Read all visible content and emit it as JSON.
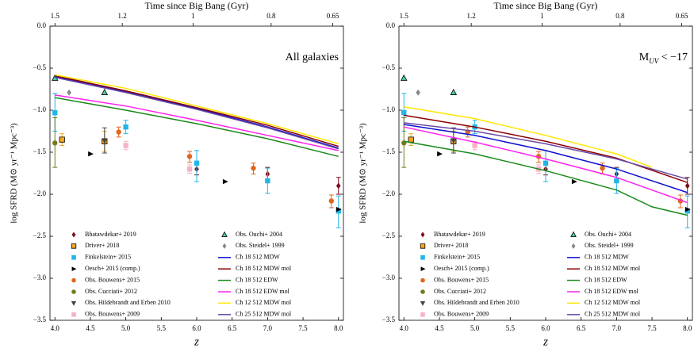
{
  "chart_data": [
    {
      "type": "combo",
      "xlabel": "z",
      "ylabel": "log SFRD (M⊙ yr⁻¹ Mpc⁻³)",
      "x2label": "Time since Big Bang (Gyr)",
      "annotation": [
        {
          "text": "All galaxies"
        }
      ],
      "xlim": [
        3.93,
        8.07
      ],
      "ylim": [
        -3.5,
        0
      ],
      "xticks": [
        {
          "value": 4,
          "label": "4.0"
        },
        4.5,
        {
          "value": 5,
          "label": "5.0"
        },
        5.5,
        {
          "value": 6,
          "label": "6.0"
        },
        6.5,
        {
          "value": 7,
          "label": "7.0"
        },
        7.5,
        {
          "value": 8,
          "label": "8.0"
        }
      ],
      "x2ticks": [
        {
          "value": 4.0,
          "label": "1.5"
        },
        {
          "value": 4.95,
          "label": "1.2"
        },
        {
          "value": 5.95,
          "label": "1"
        },
        {
          "value": 7.05,
          "label": "0.8"
        },
        {
          "value": 7.92,
          "label": "0.65"
        }
      ],
      "yticks": [
        {
          "value": -3.5,
          "label": "−3.5"
        },
        {
          "value": -3,
          "label": "−3.0"
        },
        {
          "value": -2.5,
          "label": "−2.5"
        },
        {
          "value": -2,
          "label": "−2.0"
        },
        {
          "value": -1.5,
          "label": "−1.5"
        },
        {
          "value": -1,
          "label": "−1.0"
        },
        {
          "value": -0.5,
          "label": "−0.5"
        },
        {
          "value": 0,
          "label": "0.0"
        }
      ],
      "legend": "lower left",
      "series": [
        {
          "name": "Bhatawdekar+ 2019",
          "type": "scatter",
          "marker": "diamond",
          "color": "#7b0f1a",
          "x": [
            6.0,
            7.0,
            8.0
          ],
          "values": [
            -1.7,
            -1.76,
            -1.9
          ],
          "yerr": [
            [
              0.07,
              0.07
            ],
            [
              0.08,
              0.08
            ],
            [
              0.1,
              0.1
            ]
          ]
        },
        {
          "name": "Driver+ 2018",
          "type": "scatter",
          "marker": "square",
          "color": "#f5a623",
          "edgecolor": "#000000",
          "x": [
            4.1,
            4.7
          ],
          "values": [
            -1.35,
            -1.37
          ],
          "yerr": [
            [
              0.07,
              0.07
            ],
            [
              0.12,
              0.12
            ]
          ]
        },
        {
          "name": "Finkelstein+ 2015",
          "type": "scatter",
          "marker": "square",
          "color": "#22b5e6",
          "x": [
            4.0,
            5.0,
            6.0,
            7.0,
            8.0
          ],
          "values": [
            -1.03,
            -1.2,
            -1.63,
            -1.84,
            -2.2
          ],
          "yerr": [
            [
              0.22,
              0.23
            ],
            [
              0.08,
              0.08
            ],
            [
              0.22,
              0.15
            ],
            [
              0.15,
              0.15
            ],
            [
              0.2,
              0.18
            ]
          ]
        },
        {
          "name": "Oesch+ 2015 (comp.)",
          "type": "scatter",
          "marker": "triangle-right",
          "color": "#000000",
          "x": [
            4.5,
            6.4,
            8.0
          ],
          "values": [
            -1.52,
            -1.85,
            -2.18
          ]
        },
        {
          "name": "Obs. Bouwens+ 2015",
          "type": "scatter",
          "marker": "circle",
          "color": "#e0661c",
          "x": [
            4.9,
            5.9,
            6.8,
            7.9
          ],
          "values": [
            -1.26,
            -1.55,
            -1.69,
            -2.08
          ],
          "yerr": [
            [
              0.06,
              0.06
            ],
            [
              0.07,
              0.06
            ],
            [
              0.07,
              0.06
            ],
            [
              0.08,
              0.07
            ]
          ]
        },
        {
          "name": "Obs. Cucciati+ 2012",
          "type": "scatter",
          "marker": "circle",
          "color": "#737a1a",
          "x": [
            4.0
          ],
          "values": [
            -1.39
          ],
          "yerr": [
            [
              0.29,
              0.3
            ]
          ]
        },
        {
          "name": "Obs. Hildebrandt and Erben 2010",
          "type": "scatter",
          "marker": "triangle-down",
          "color": "#444444",
          "x": [
            4.7
          ],
          "values": [
            -1.36
          ],
          "yerr": [
            [
              0.15,
              0.15
            ]
          ]
        },
        {
          "name": "Obs. Bouwens+ 2009",
          "type": "scatter",
          "marker": "square",
          "color": "#f5b3c3",
          "x": [
            5.0,
            5.9
          ],
          "values": [
            -1.42,
            -1.7
          ],
          "yerr": [
            [
              0.05,
              0.05
            ],
            [
              0.05,
              0.05
            ]
          ]
        },
        {
          "name": "Obs. Ouchi+ 2004",
          "type": "scatter",
          "marker": "triangle-up",
          "color": "#4cc9a8",
          "edgecolor": "#000000",
          "x": [
            4.0,
            4.7
          ],
          "values": [
            -0.62,
            -0.79
          ]
        },
        {
          "name": "Obs. Steidel+ 1999",
          "type": "scatter",
          "marker": "diamond",
          "color": "#888888",
          "x": [
            4.2
          ],
          "values": [
            -0.79
          ]
        },
        {
          "name": "Ch 18 512 MDW",
          "type": "line",
          "color": "#1010d0",
          "x": [
            4,
            5,
            6,
            7,
            8
          ],
          "values": [
            -0.6,
            -0.78,
            -0.98,
            -1.2,
            -1.45
          ]
        },
        {
          "name": "Ch 18 512 MDW mol",
          "type": "line",
          "color": "#8b0000",
          "x": [
            4,
            5,
            6,
            7,
            8
          ],
          "values": [
            -0.59,
            -0.77,
            -0.97,
            -1.18,
            -1.43
          ]
        },
        {
          "name": "Ch 18 512 EDW",
          "type": "line",
          "color": "#1a8a1a",
          "x": [
            4,
            5,
            6,
            7,
            8
          ],
          "values": [
            -0.85,
            -1.0,
            -1.16,
            -1.34,
            -1.55
          ]
        },
        {
          "name": "Ch 18 512 EDW mol",
          "type": "line",
          "color": "#ff22ee",
          "x": [
            4,
            5,
            6,
            7,
            8
          ],
          "values": [
            -0.82,
            -0.95,
            -1.12,
            -1.3,
            -1.48
          ]
        },
        {
          "name": "Ch 12 512 MDW mol",
          "type": "line",
          "color": "#ffe600",
          "x": [
            4,
            5,
            6,
            7,
            8
          ],
          "values": [
            -0.58,
            -0.74,
            -0.95,
            -1.16,
            -1.4
          ]
        },
        {
          "name": "Ch 25 512 MDW mol",
          "type": "line",
          "color": "#6a4aa8",
          "x": [
            4,
            5,
            6,
            7,
            8
          ],
          "values": [
            -0.61,
            -0.79,
            -0.99,
            -1.21,
            -1.46
          ]
        }
      ]
    },
    {
      "type": "combo",
      "xlabel": "z",
      "ylabel": "log SFRD (M⊙ yr⁻¹ Mpc⁻³)",
      "x2label": "Time since Big Bang (Gyr)",
      "annotation": [
        {
          "text": "M"
        },
        {
          "text": "UV",
          "sub": true
        },
        {
          "text": " < −17"
        }
      ],
      "xlim": [
        3.93,
        8.07
      ],
      "ylim": [
        -3.5,
        0
      ],
      "xticks": [
        {
          "value": 4,
          "label": "4.0"
        },
        4.5,
        {
          "value": 5,
          "label": "5.0"
        },
        5.5,
        {
          "value": 6,
          "label": "6.0"
        },
        6.5,
        {
          "value": 7,
          "label": "7.0"
        },
        7.5,
        {
          "value": 8,
          "label": "8.0"
        }
      ],
      "x2ticks": [
        {
          "value": 4.0,
          "label": "1.5"
        },
        {
          "value": 4.95,
          "label": "1.2"
        },
        {
          "value": 5.95,
          "label": "1"
        },
        {
          "value": 7.05,
          "label": "0.8"
        },
        {
          "value": 7.92,
          "label": "0.65"
        }
      ],
      "yticks": [
        {
          "value": -3.5,
          "label": "−3.5"
        },
        {
          "value": -3,
          "label": "−3.0"
        },
        {
          "value": -2.5,
          "label": "−2.5"
        },
        {
          "value": -2,
          "label": "−2.0"
        },
        {
          "value": -1.5,
          "label": "−1.5"
        },
        {
          "value": -1,
          "label": "−1.0"
        },
        {
          "value": -0.5,
          "label": "−0.5"
        },
        {
          "value": 0,
          "label": "0.0"
        }
      ],
      "legend": "lower left",
      "series": [
        {
          "name": "Bhatawdekar+ 2019",
          "type": "scatter",
          "marker": "diamond",
          "color": "#7b0f1a",
          "x": [
            6.0,
            7.0,
            8.0
          ],
          "values": [
            -1.7,
            -1.76,
            -1.9
          ],
          "yerr": [
            [
              0.07,
              0.07
            ],
            [
              0.08,
              0.08
            ],
            [
              0.1,
              0.1
            ]
          ]
        },
        {
          "name": "Driver+ 2018",
          "type": "scatter",
          "marker": "square",
          "color": "#f5a623",
          "edgecolor": "#000000",
          "x": [
            4.1,
            4.7
          ],
          "values": [
            -1.35,
            -1.37
          ],
          "yerr": [
            [
              0.07,
              0.07
            ],
            [
              0.12,
              0.12
            ]
          ]
        },
        {
          "name": "Finkelstein+ 2015",
          "type": "scatter",
          "marker": "square",
          "color": "#22b5e6",
          "x": [
            4.0,
            5.0,
            6.0,
            7.0,
            8.0
          ],
          "values": [
            -1.03,
            -1.2,
            -1.63,
            -1.84,
            -2.2
          ],
          "yerr": [
            [
              0.22,
              0.23
            ],
            [
              0.08,
              0.08
            ],
            [
              0.22,
              0.15
            ],
            [
              0.15,
              0.15
            ],
            [
              0.2,
              0.18
            ]
          ]
        },
        {
          "name": "Oesch+ 2015 (comp.)",
          "type": "scatter",
          "marker": "triangle-right",
          "color": "#000000",
          "x": [
            4.5,
            6.4,
            8.0
          ],
          "values": [
            -1.52,
            -1.85,
            -2.18
          ]
        },
        {
          "name": "Obs. Bouwens+ 2015",
          "type": "scatter",
          "marker": "circle",
          "color": "#e0661c",
          "x": [
            4.9,
            5.9,
            6.8,
            7.9
          ],
          "values": [
            -1.26,
            -1.55,
            -1.69,
            -2.08
          ],
          "yerr": [
            [
              0.06,
              0.06
            ],
            [
              0.07,
              0.06
            ],
            [
              0.07,
              0.06
            ],
            [
              0.08,
              0.07
            ]
          ]
        },
        {
          "name": "Obs. Cucciati+ 2012",
          "type": "scatter",
          "marker": "circle",
          "color": "#737a1a",
          "x": [
            4.0
          ],
          "values": [
            -1.39
          ],
          "yerr": [
            [
              0.29,
              0.3
            ]
          ]
        },
        {
          "name": "Obs. Hildebrandt and Erben 2010",
          "type": "scatter",
          "marker": "triangle-down",
          "color": "#444444",
          "x": [
            4.7
          ],
          "values": [
            -1.36
          ],
          "yerr": [
            [
              0.15,
              0.15
            ]
          ]
        },
        {
          "name": "Obs. Bouwens+ 2009",
          "type": "scatter",
          "marker": "square",
          "color": "#f5b3c3",
          "x": [
            5.0,
            5.9
          ],
          "values": [
            -1.42,
            -1.7
          ],
          "yerr": [
            [
              0.05,
              0.05
            ],
            [
              0.05,
              0.05
            ]
          ]
        },
        {
          "name": "Obs. Ouchi+ 2004",
          "type": "scatter",
          "marker": "triangle-up",
          "color": "#4cc9a8",
          "edgecolor": "#000000",
          "x": [
            4.0,
            4.7
          ],
          "values": [
            -0.62,
            -0.79
          ]
        },
        {
          "name": "Obs. Steidel+ 1999",
          "type": "scatter",
          "marker": "diamond",
          "color": "#888888",
          "x": [
            4.2
          ],
          "values": [
            -0.79
          ]
        },
        {
          "name": "Ch 18 512 MDW",
          "type": "line",
          "color": "#1010d0",
          "x": [
            4,
            5,
            6,
            7,
            8
          ],
          "values": [
            -1.17,
            -1.3,
            -1.48,
            -1.7,
            -1.98
          ]
        },
        {
          "name": "Ch 18 512 MDW mol",
          "type": "line",
          "color": "#8b0000",
          "x": [
            4,
            5,
            6,
            7,
            8
          ],
          "values": [
            -1.06,
            -1.2,
            -1.37,
            -1.57,
            -1.86
          ]
        },
        {
          "name": "Ch 18 512 EDW",
          "type": "line",
          "color": "#1a8a1a",
          "x": [
            4,
            5,
            6,
            7,
            7.5,
            8
          ],
          "values": [
            -1.37,
            -1.52,
            -1.72,
            -1.95,
            -2.15,
            -2.25
          ]
        },
        {
          "name": "Ch 18 512 EDW mol",
          "type": "line",
          "color": "#ff22ee",
          "x": [
            4,
            5,
            6,
            7,
            8
          ],
          "values": [
            -1.2,
            -1.38,
            -1.58,
            -1.8,
            -2.1
          ]
        },
        {
          "name": "Ch 12 512 MDW mol",
          "type": "line",
          "color": "#ffe600",
          "x": [
            4,
            5,
            6,
            7,
            7.5
          ],
          "values": [
            -0.96,
            -1.1,
            -1.3,
            -1.52,
            -1.68
          ]
        },
        {
          "name": "Ch 25 512 MDW mol",
          "type": "line",
          "color": "#6a4aa8",
          "x": [
            4,
            5,
            6,
            7,
            8
          ],
          "values": [
            -1.15,
            -1.25,
            -1.4,
            -1.58,
            -1.82
          ]
        }
      ]
    }
  ]
}
